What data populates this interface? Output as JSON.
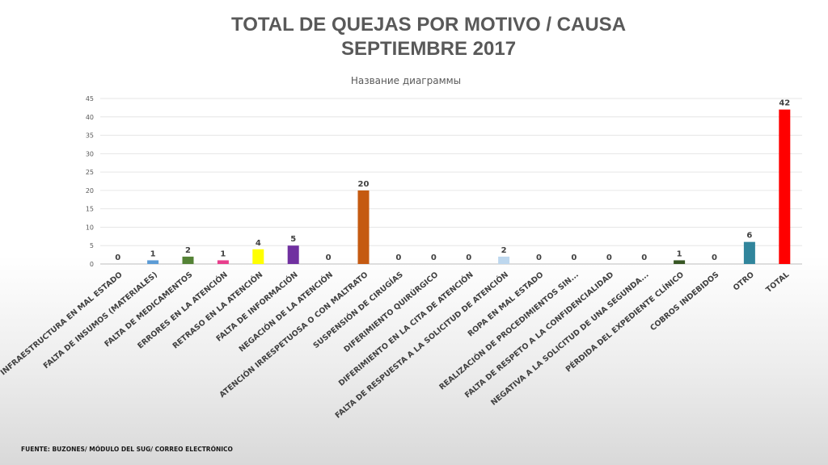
{
  "slide": {
    "title_line1": "TOTAL DE QUEJAS POR MOTIVO / CAUSA",
    "title_line2": "SEPTIEMBRE 2017",
    "source": "FUENTE: BUZONES/ MÓDULO DEL SUG/ CORREO ELECTRÓNICO"
  },
  "chart_data": {
    "type": "bar",
    "title": "Название диаграммы",
    "xlabel": "",
    "ylabel": "",
    "ylim": [
      0,
      45
    ],
    "yticks": [
      0,
      5,
      10,
      15,
      20,
      25,
      30,
      35,
      40,
      45
    ],
    "grid": true,
    "legend": "none",
    "categories": [
      "INFRAESTRUCTURA EN MAL ESTADO",
      "FALTA DE INSUMOS (MATERIALES)",
      "FALTA DE MEDICAMENTOS",
      "ERRORES EN LA ATENCIÓN",
      "RETRASO EN LA ATENCIÓN",
      "FALTA DE INFORMACIÓN",
      "NEGACIÓN DE LA ATENCIÓN",
      "ATENCIÓN IRRESPETUOSA O CON MALTRATO",
      "SUSPENSIÓN DE CIRUGÍAS",
      "DIFERIMIENTO QUIRÚRGICO",
      "DIFERIMIENTO EN LA CITA DE ATENCIÓN",
      "FALTA DE RESPUESTA A LA SOLICITUD DE ATENCIÓN",
      "ROPA EN MAL ESTADO",
      "REALIZACIÓN DE PROCEDIMIENTOS SIN...",
      "FALTA DE RESPETO A LA CONFIDENCIALIDAD",
      "NEGATIVA A LA SOLICITUD DE UNA SEGUNDA...",
      "PÉRDIDA DEL EXPEDIENTE CLÍNICO",
      "COBROS INDEBIDOS",
      "OTRO",
      "TOTAL"
    ],
    "values": [
      0,
      1,
      2,
      1,
      4,
      5,
      0,
      20,
      0,
      0,
      0,
      2,
      0,
      0,
      0,
      0,
      1,
      0,
      6,
      42
    ],
    "colors": [
      "#8c8c8c",
      "#5b9bd5",
      "#548235",
      "#e83e8c",
      "#ffff00",
      "#7030a0",
      "#8c8c8c",
      "#c55a11",
      "#8c8c8c",
      "#8c8c8c",
      "#8c8c8c",
      "#bdd7ee",
      "#8c8c8c",
      "#8c8c8c",
      "#8c8c8c",
      "#8c8c8c",
      "#375623",
      "#8c8c8c",
      "#31859c",
      "#ff0000"
    ]
  }
}
